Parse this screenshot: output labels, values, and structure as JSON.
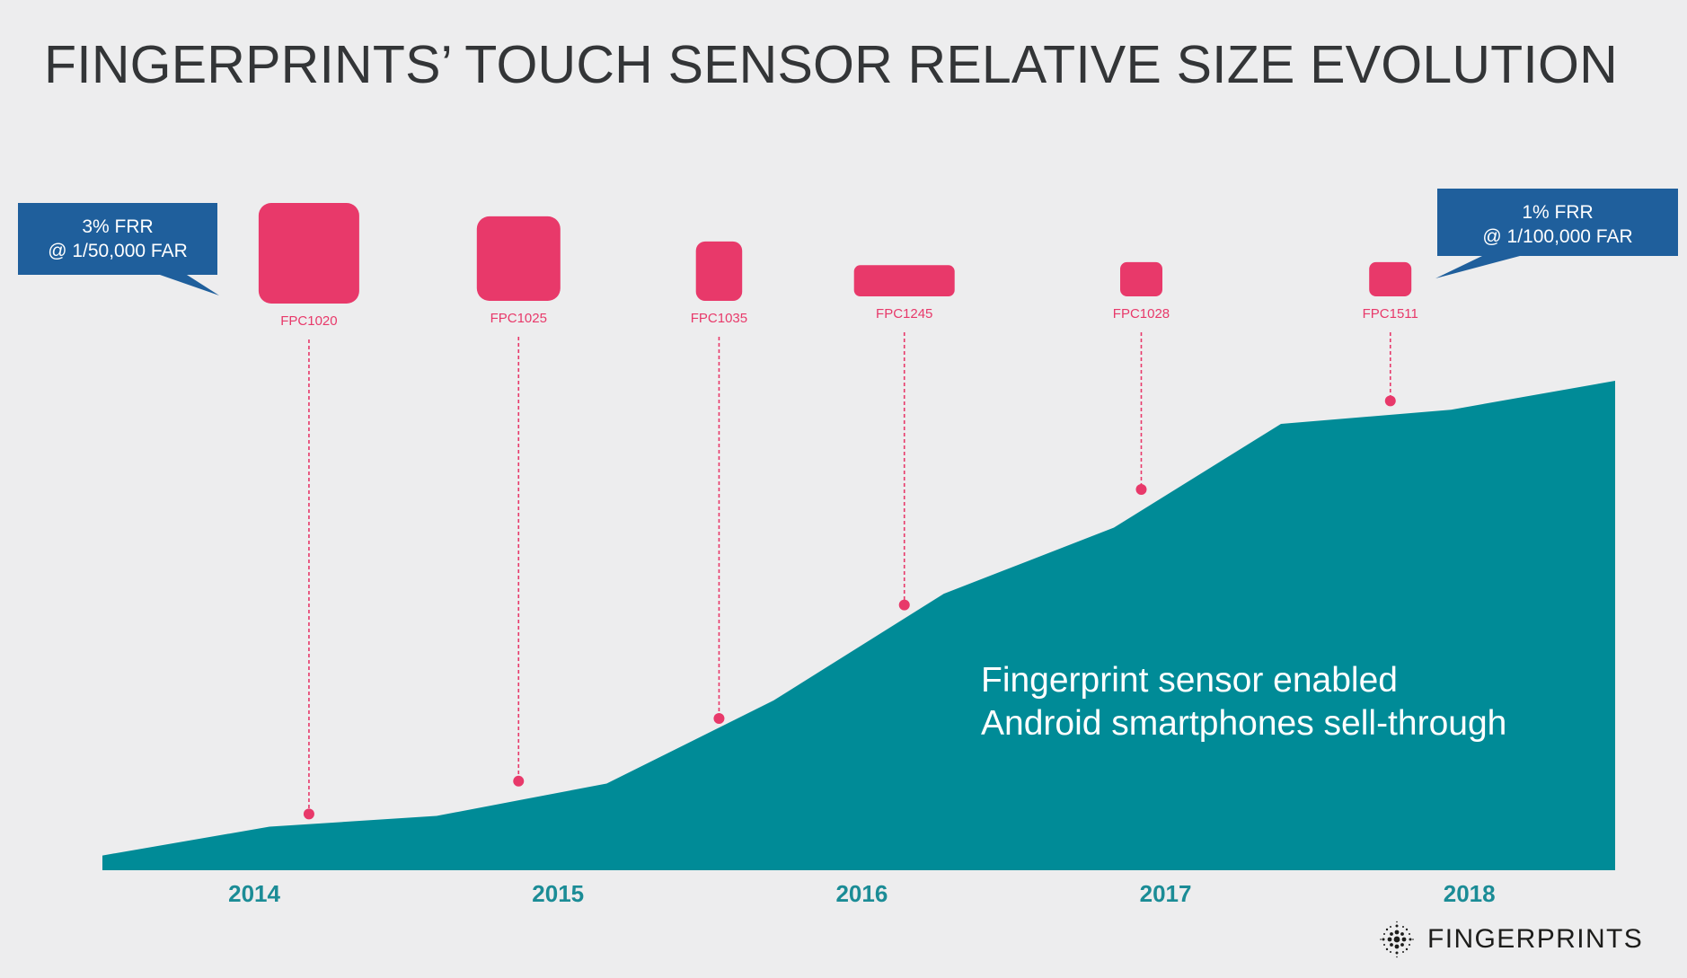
{
  "page": {
    "title": "FINGERPRINTS’ TOUCH SENSOR RELATIVE SIZE EVOLUTION"
  },
  "brand": {
    "name": "FINGERPRINTS",
    "logo_icon": "fingerprints-logo-icon"
  },
  "colors": {
    "background": "#ededee",
    "area": "#008b97",
    "sensor": "#e8396a",
    "callout": "#1f5f9c",
    "year_label": "#1b8c96"
  },
  "chart_data": {
    "type": "area",
    "title": "FINGERPRINTS’ TOUCH SENSOR RELATIVE SIZE EVOLUTION",
    "x_ticks": [
      "2014",
      "2015",
      "2016",
      "2017",
      "2018"
    ],
    "x_range": [
      2013.5,
      2018.48
    ],
    "y_unit": "relative sell-through (0–100, unlabeled axis)",
    "y_range": [
      0,
      100
    ],
    "grid": false,
    "series": [
      {
        "name": "Fingerprint sensor enabled Android smartphones sell-through",
        "points": [
          {
            "x": 2013.5,
            "y": 3
          },
          {
            "x": 2014.05,
            "y": 8.9
          },
          {
            "x": 2014.6,
            "y": 11.1
          },
          {
            "x": 2015.16,
            "y": 17.7
          },
          {
            "x": 2015.71,
            "y": 34.7
          },
          {
            "x": 2016.27,
            "y": 56.5
          },
          {
            "x": 2016.83,
            "y": 70
          },
          {
            "x": 2017.38,
            "y": 91.2
          },
          {
            "x": 2017.94,
            "y": 94.1
          },
          {
            "x": 2018.48,
            "y": 100
          }
        ]
      }
    ],
    "annotation_lines": [
      "Fingerprint sensor enabled",
      "Android smartphones sell-through"
    ],
    "callouts": [
      {
        "lines": [
          "3% FRR",
          "@ 1/50,000 FAR"
        ],
        "side": "left"
      },
      {
        "lines": [
          "1% FRR",
          "@ 1/100,000 FAR"
        ],
        "side": "right"
      }
    ],
    "sensors": [
      {
        "label": "FPC1020",
        "x": 2014.18,
        "y": 11.5,
        "relative_width": 1.0,
        "relative_height": 1.0
      },
      {
        "label": "FPC1025",
        "x": 2014.87,
        "y": 18.2,
        "relative_width": 0.83,
        "relative_height": 0.84
      },
      {
        "label": "FPC1035",
        "x": 2015.53,
        "y": 31.0,
        "relative_width": 0.46,
        "relative_height": 0.59
      },
      {
        "label": "FPC1245",
        "x": 2016.14,
        "y": 54.2,
        "relative_width": 1.0,
        "relative_height": 0.31
      },
      {
        "label": "FPC1028",
        "x": 2016.92,
        "y": 77.8,
        "relative_width": 0.42,
        "relative_height": 0.34
      },
      {
        "label": "FPC1511",
        "x": 2017.74,
        "y": 95.9,
        "relative_width": 0.42,
        "relative_height": 0.34
      }
    ]
  }
}
